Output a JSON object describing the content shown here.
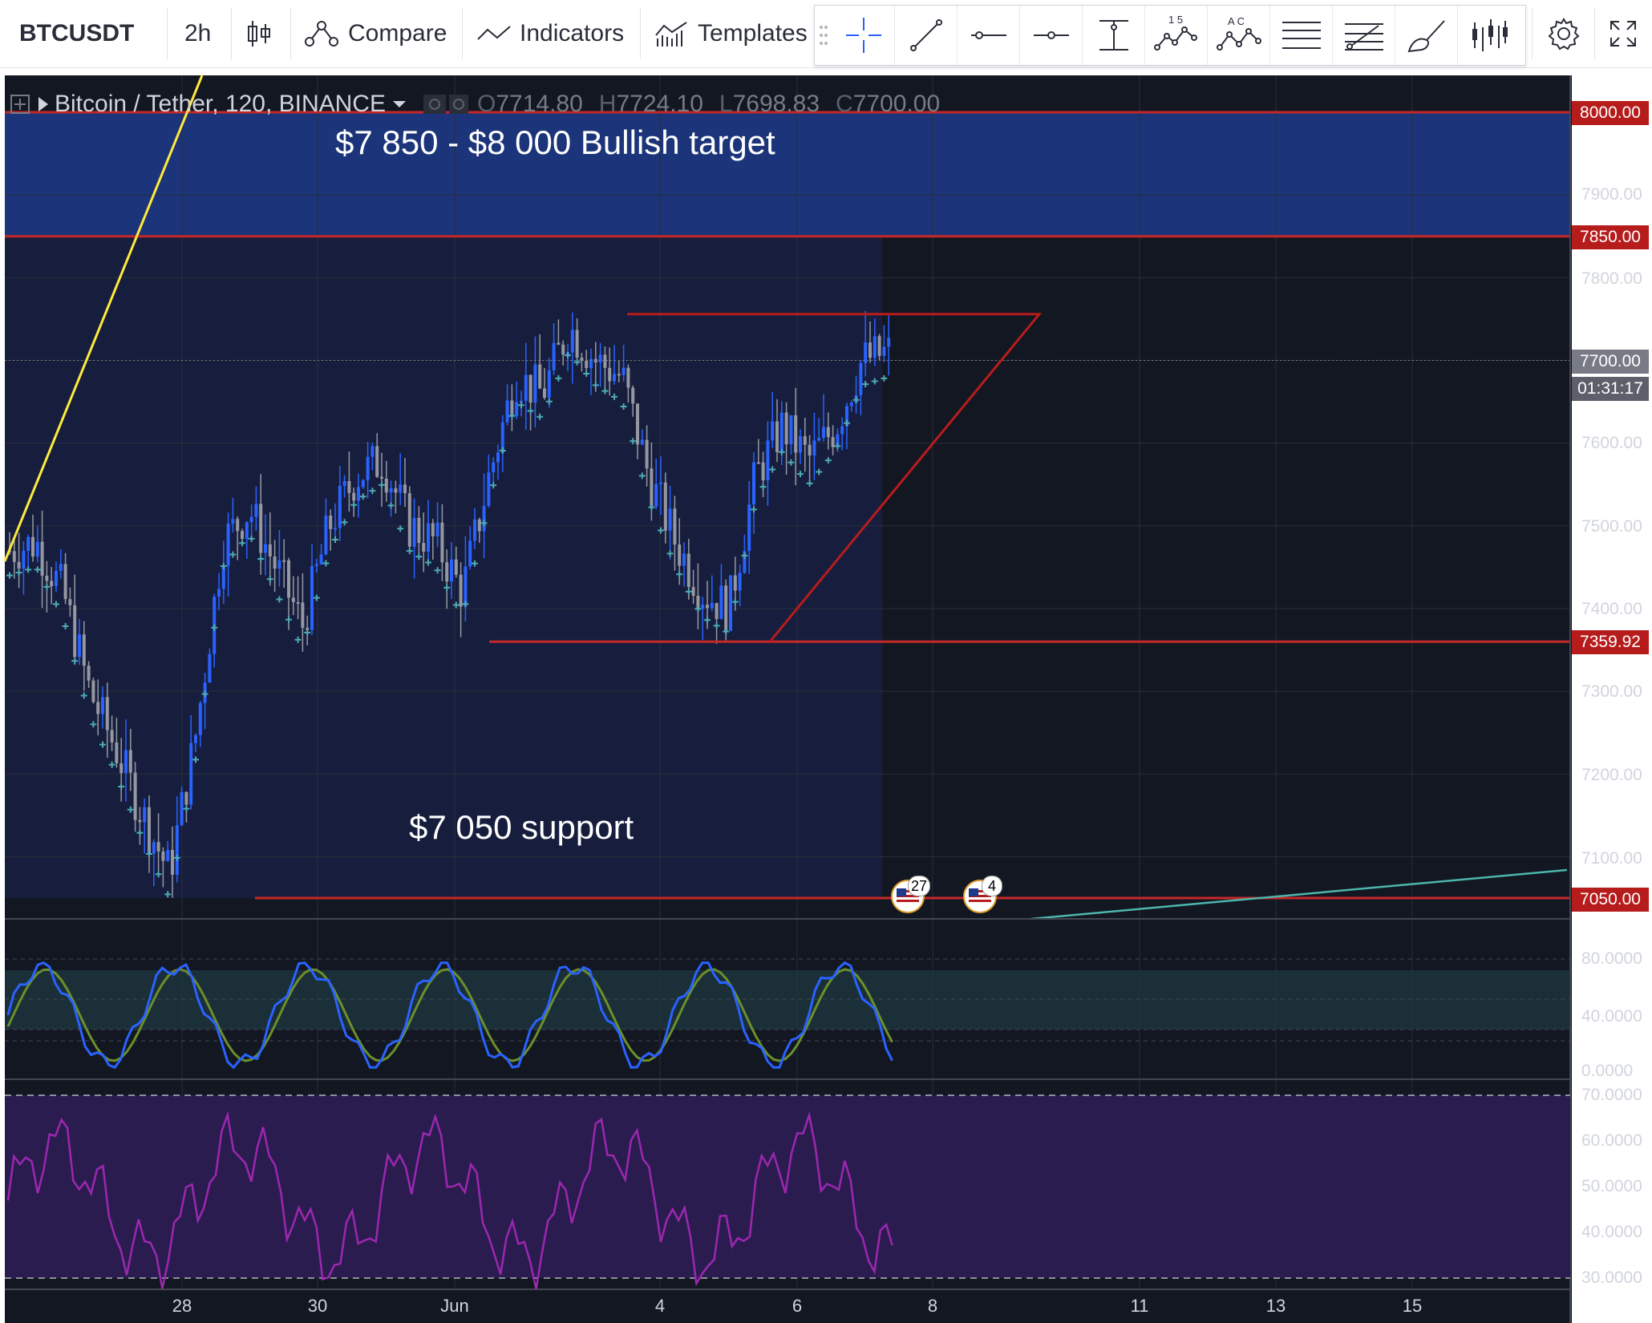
{
  "toolbar": {
    "symbol": "BTCUSDT",
    "interval": "2h",
    "compare_label": "Compare",
    "indicators_label": "Indicators",
    "templates_label": "Templates",
    "tools": [
      "crosshair-icon",
      "trend-line-icon",
      "horizontal-line-icon",
      "horizontal-ray-icon",
      "vertical-line-icon",
      "wave-123-icon",
      "wave-abc-icon",
      "parallel-channel-icon",
      "fib-retracement-icon",
      "brush-icon",
      "bar-pattern-icon"
    ],
    "wave123_marks": "1 5",
    "waveabc_marks": "A C"
  },
  "legend": {
    "title": "Bitcoin / Tether, 120, BINANCE",
    "o_key": "O",
    "o_val": "7714.80",
    "h_key": "H",
    "h_val": "7724.10",
    "l_key": "L",
    "l_val": "7698.83",
    "c_key": "C",
    "c_val": "7700.00"
  },
  "annotations": {
    "bullish": "$7 850 - $8 000 Bullish target",
    "support": "$7 050 support"
  },
  "price_axis": [
    "8000.00",
    "7900.00",
    "7850.00",
    "7800.00",
    "7700.00",
    "7600.00",
    "7500.00",
    "7400.00",
    "7359.92",
    "7300.00",
    "7200.00",
    "7100.00",
    "7050.00"
  ],
  "price_tags": {
    "p8000": "8000.00",
    "p7850": "7850.00",
    "p7700": "7700.00",
    "countdown": "01:31:17",
    "p7359": "7359.92",
    "p7050": "7050.00"
  },
  "stoch_axis": [
    "80.0000",
    "40.0000",
    "0.0000"
  ],
  "rsi_axis": [
    "70.0000",
    "60.0000",
    "50.0000",
    "40.0000",
    "30.0000"
  ],
  "date_axis": [
    "28",
    "30",
    "Jun",
    "4",
    "6",
    "8",
    "11",
    "13",
    "15"
  ],
  "events": {
    "first_count": "27",
    "second_count": "4"
  },
  "colors": {
    "background": "#131722",
    "up_candle": "#2962ff",
    "down_candle": "#9598a1",
    "level_line": "#b71c1c",
    "target_zone": "#1e3a8a",
    "rsi_zone": "#2b1c4f",
    "rsi_line": "#9c27b0",
    "stoch_k": "#2962ff",
    "stoch_d": "#6a8f2a",
    "ma_cross": "#4dabb5"
  }
}
